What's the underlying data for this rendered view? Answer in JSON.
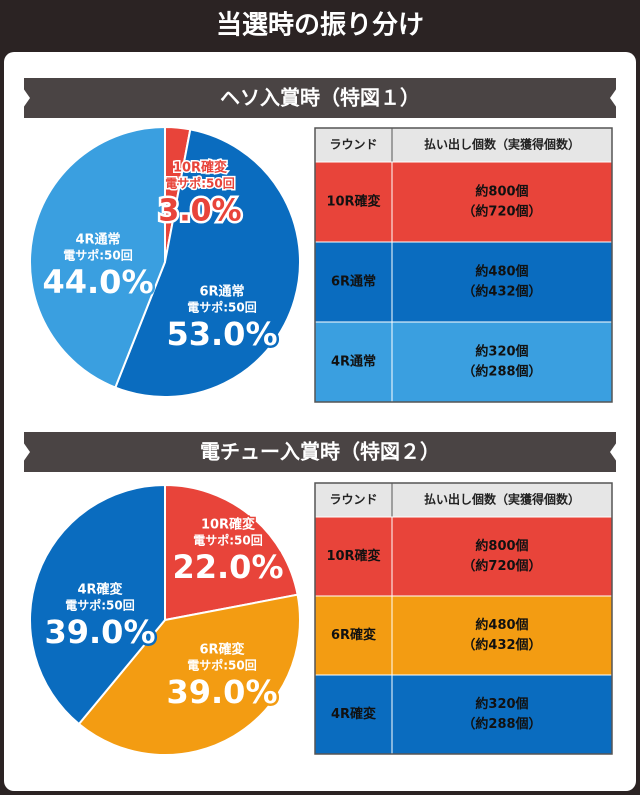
{
  "title": "当選時の振り分け",
  "chart_data": [
    {
      "type": "pie",
      "title": "ヘソ入賞時（特図１）",
      "categories": [
        "10R確変",
        "6R通常",
        "4R通常"
      ],
      "sub_labels": [
        "電サポ:50回",
        "電サポ:50回",
        "電サポ:50回"
      ],
      "values": [
        3,
        53,
        44
      ],
      "value_labels": [
        "3.0%",
        "53.0%",
        "44.0%"
      ],
      "colors": [
        "#e8443a",
        "#0a6cbf",
        "#3a9fe0"
      ]
    },
    {
      "type": "pie",
      "title": "電チュー入賞時（特図２）",
      "categories": [
        "10R確変",
        "6R確変",
        "4R確変"
      ],
      "sub_labels": [
        "電サポ:50回",
        "電サポ:50回",
        "電サポ:50回"
      ],
      "values": [
        22,
        39,
        39
      ],
      "value_labels": [
        "22.0%",
        "39.0%",
        "39.0%"
      ],
      "colors": [
        "#e8443a",
        "#f39c12",
        "#0a6cbf"
      ]
    }
  ],
  "tables": [
    {
      "header": [
        "ラウンド",
        "払い出し個数（実獲得個数）"
      ],
      "rows": [
        [
          "10R確変",
          "約800個",
          "（約720個）"
        ],
        [
          "6R通常",
          "約480個",
          "（約432個）"
        ],
        [
          "4R通常",
          "約320個",
          "（約288個）"
        ]
      ]
    },
    {
      "header": [
        "ラウンド",
        "払い出し個数（実獲得個数）"
      ],
      "rows": [
        [
          "10R確変",
          "約800個",
          "（約720個）"
        ],
        [
          "6R確変",
          "約480個",
          "（約432個）"
        ],
        [
          "4R確変",
          "約320個",
          "（約288個）"
        ]
      ]
    }
  ]
}
